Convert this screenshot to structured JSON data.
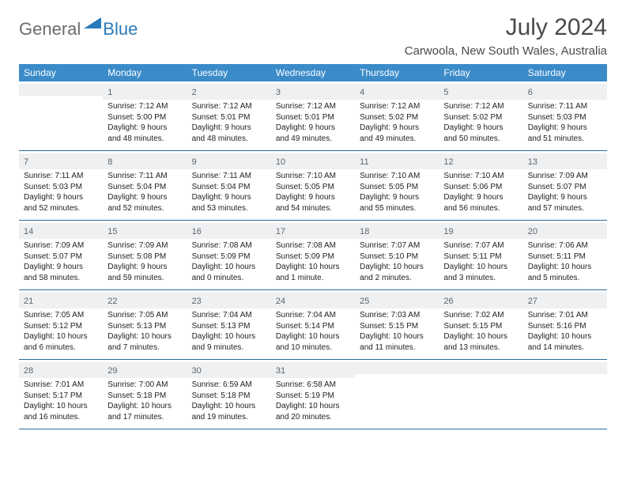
{
  "logo": {
    "general": "General",
    "blue": "Blue"
  },
  "title": "July 2024",
  "location": "Carwoola, New South Wales, Australia",
  "colors": {
    "header_bg": "#3b8bc9",
    "date_row_bg": "#eef0f2",
    "week_border": "#2a6a9a",
    "logo_gray": "#6b6b6b",
    "logo_blue": "#2a7ab9",
    "title_color": "#4a4a4a",
    "text_color": "#222222"
  },
  "day_names": [
    "Sunday",
    "Monday",
    "Tuesday",
    "Wednesday",
    "Thursday",
    "Friday",
    "Saturday"
  ],
  "weeks": [
    [
      {
        "date": "",
        "sunrise": "",
        "sunset": "",
        "daylight": ""
      },
      {
        "date": "1",
        "sunrise": "Sunrise: 7:12 AM",
        "sunset": "Sunset: 5:00 PM",
        "daylight": "Daylight: 9 hours and 48 minutes."
      },
      {
        "date": "2",
        "sunrise": "Sunrise: 7:12 AM",
        "sunset": "Sunset: 5:01 PM",
        "daylight": "Daylight: 9 hours and 48 minutes."
      },
      {
        "date": "3",
        "sunrise": "Sunrise: 7:12 AM",
        "sunset": "Sunset: 5:01 PM",
        "daylight": "Daylight: 9 hours and 49 minutes."
      },
      {
        "date": "4",
        "sunrise": "Sunrise: 7:12 AM",
        "sunset": "Sunset: 5:02 PM",
        "daylight": "Daylight: 9 hours and 49 minutes."
      },
      {
        "date": "5",
        "sunrise": "Sunrise: 7:12 AM",
        "sunset": "Sunset: 5:02 PM",
        "daylight": "Daylight: 9 hours and 50 minutes."
      },
      {
        "date": "6",
        "sunrise": "Sunrise: 7:11 AM",
        "sunset": "Sunset: 5:03 PM",
        "daylight": "Daylight: 9 hours and 51 minutes."
      }
    ],
    [
      {
        "date": "7",
        "sunrise": "Sunrise: 7:11 AM",
        "sunset": "Sunset: 5:03 PM",
        "daylight": "Daylight: 9 hours and 52 minutes."
      },
      {
        "date": "8",
        "sunrise": "Sunrise: 7:11 AM",
        "sunset": "Sunset: 5:04 PM",
        "daylight": "Daylight: 9 hours and 52 minutes."
      },
      {
        "date": "9",
        "sunrise": "Sunrise: 7:11 AM",
        "sunset": "Sunset: 5:04 PM",
        "daylight": "Daylight: 9 hours and 53 minutes."
      },
      {
        "date": "10",
        "sunrise": "Sunrise: 7:10 AM",
        "sunset": "Sunset: 5:05 PM",
        "daylight": "Daylight: 9 hours and 54 minutes."
      },
      {
        "date": "11",
        "sunrise": "Sunrise: 7:10 AM",
        "sunset": "Sunset: 5:05 PM",
        "daylight": "Daylight: 9 hours and 55 minutes."
      },
      {
        "date": "12",
        "sunrise": "Sunrise: 7:10 AM",
        "sunset": "Sunset: 5:06 PM",
        "daylight": "Daylight: 9 hours and 56 minutes."
      },
      {
        "date": "13",
        "sunrise": "Sunrise: 7:09 AM",
        "sunset": "Sunset: 5:07 PM",
        "daylight": "Daylight: 9 hours and 57 minutes."
      }
    ],
    [
      {
        "date": "14",
        "sunrise": "Sunrise: 7:09 AM",
        "sunset": "Sunset: 5:07 PM",
        "daylight": "Daylight: 9 hours and 58 minutes."
      },
      {
        "date": "15",
        "sunrise": "Sunrise: 7:09 AM",
        "sunset": "Sunset: 5:08 PM",
        "daylight": "Daylight: 9 hours and 59 minutes."
      },
      {
        "date": "16",
        "sunrise": "Sunrise: 7:08 AM",
        "sunset": "Sunset: 5:09 PM",
        "daylight": "Daylight: 10 hours and 0 minutes."
      },
      {
        "date": "17",
        "sunrise": "Sunrise: 7:08 AM",
        "sunset": "Sunset: 5:09 PM",
        "daylight": "Daylight: 10 hours and 1 minute."
      },
      {
        "date": "18",
        "sunrise": "Sunrise: 7:07 AM",
        "sunset": "Sunset: 5:10 PM",
        "daylight": "Daylight: 10 hours and 2 minutes."
      },
      {
        "date": "19",
        "sunrise": "Sunrise: 7:07 AM",
        "sunset": "Sunset: 5:11 PM",
        "daylight": "Daylight: 10 hours and 3 minutes."
      },
      {
        "date": "20",
        "sunrise": "Sunrise: 7:06 AM",
        "sunset": "Sunset: 5:11 PM",
        "daylight": "Daylight: 10 hours and 5 minutes."
      }
    ],
    [
      {
        "date": "21",
        "sunrise": "Sunrise: 7:05 AM",
        "sunset": "Sunset: 5:12 PM",
        "daylight": "Daylight: 10 hours and 6 minutes."
      },
      {
        "date": "22",
        "sunrise": "Sunrise: 7:05 AM",
        "sunset": "Sunset: 5:13 PM",
        "daylight": "Daylight: 10 hours and 7 minutes."
      },
      {
        "date": "23",
        "sunrise": "Sunrise: 7:04 AM",
        "sunset": "Sunset: 5:13 PM",
        "daylight": "Daylight: 10 hours and 9 minutes."
      },
      {
        "date": "24",
        "sunrise": "Sunrise: 7:04 AM",
        "sunset": "Sunset: 5:14 PM",
        "daylight": "Daylight: 10 hours and 10 minutes."
      },
      {
        "date": "25",
        "sunrise": "Sunrise: 7:03 AM",
        "sunset": "Sunset: 5:15 PM",
        "daylight": "Daylight: 10 hours and 11 minutes."
      },
      {
        "date": "26",
        "sunrise": "Sunrise: 7:02 AM",
        "sunset": "Sunset: 5:15 PM",
        "daylight": "Daylight: 10 hours and 13 minutes."
      },
      {
        "date": "27",
        "sunrise": "Sunrise: 7:01 AM",
        "sunset": "Sunset: 5:16 PM",
        "daylight": "Daylight: 10 hours and 14 minutes."
      }
    ],
    [
      {
        "date": "28",
        "sunrise": "Sunrise: 7:01 AM",
        "sunset": "Sunset: 5:17 PM",
        "daylight": "Daylight: 10 hours and 16 minutes."
      },
      {
        "date": "29",
        "sunrise": "Sunrise: 7:00 AM",
        "sunset": "Sunset: 5:18 PM",
        "daylight": "Daylight: 10 hours and 17 minutes."
      },
      {
        "date": "30",
        "sunrise": "Sunrise: 6:59 AM",
        "sunset": "Sunset: 5:18 PM",
        "daylight": "Daylight: 10 hours and 19 minutes."
      },
      {
        "date": "31",
        "sunrise": "Sunrise: 6:58 AM",
        "sunset": "Sunset: 5:19 PM",
        "daylight": "Daylight: 10 hours and 20 minutes."
      },
      {
        "date": "",
        "sunrise": "",
        "sunset": "",
        "daylight": ""
      },
      {
        "date": "",
        "sunrise": "",
        "sunset": "",
        "daylight": ""
      },
      {
        "date": "",
        "sunrise": "",
        "sunset": "",
        "daylight": ""
      }
    ]
  ]
}
